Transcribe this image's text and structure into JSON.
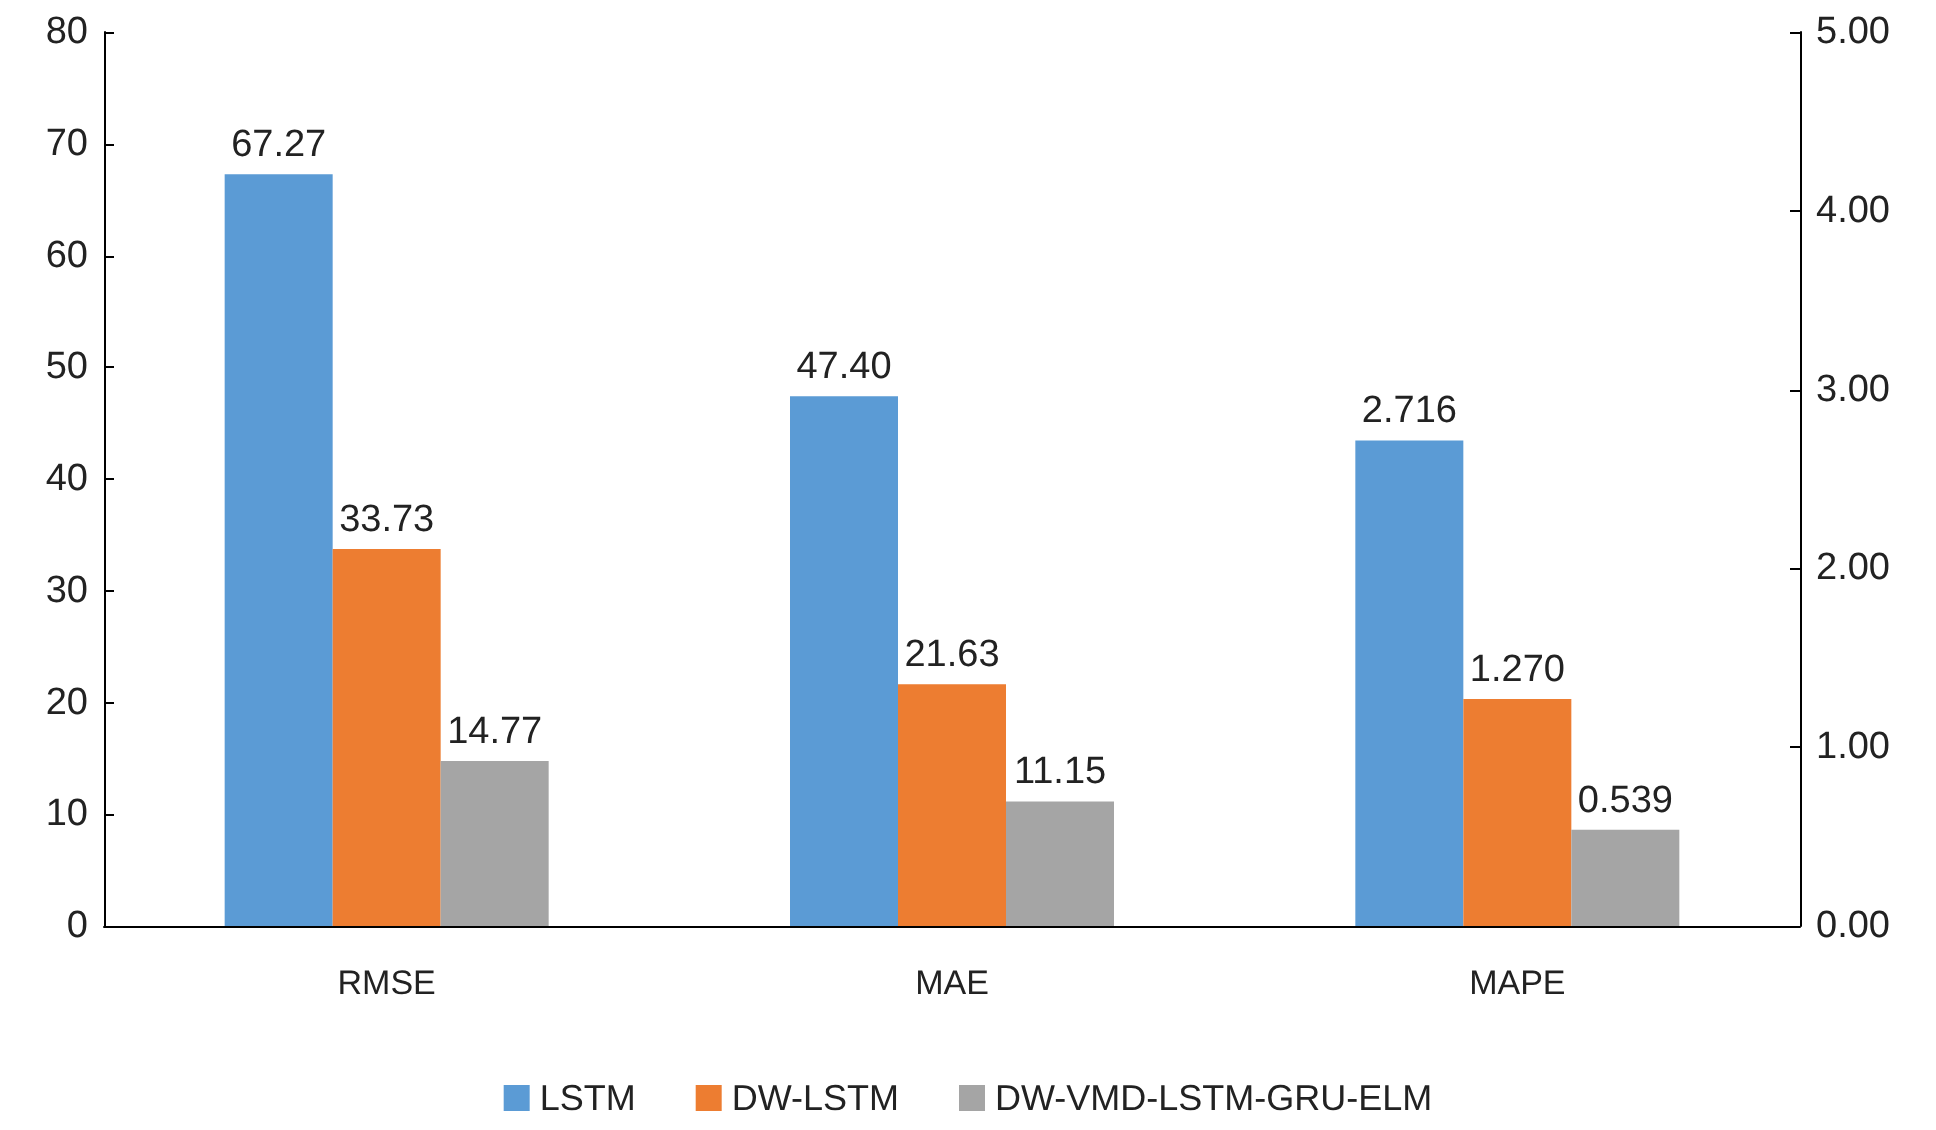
{
  "chart_data": {
    "type": "bar",
    "categories": [
      "RMSE",
      "MAE",
      "MAPE"
    ],
    "series": [
      {
        "name": "LSTM",
        "color": "#5b9bd5",
        "values": [
          67.27,
          47.4,
          null
        ],
        "value_labels": [
          "67.27",
          "47.40",
          null
        ]
      },
      {
        "name": "DW-LSTM",
        "color": "#ed7d31",
        "values": [
          33.73,
          21.63,
          null
        ],
        "value_labels": [
          "33.73",
          "21.63",
          null
        ]
      },
      {
        "name": "DW-VMD-LSTM-GRU-ELM",
        "color": "#a5a5a5",
        "values": [
          14.77,
          11.15,
          null
        ],
        "value_labels": [
          "14.77",
          "11.15",
          null
        ]
      },
      {
        "color": "#5b9bd5",
        "axis": "y2",
        "values": [
          null,
          null,
          2.716
        ],
        "value_labels": [
          null,
          null,
          "2.716"
        ]
      },
      {
        "color": "#ed7d31",
        "axis": "y2",
        "values": [
          null,
          null,
          1.27
        ],
        "value_labels": [
          null,
          null,
          "1.270"
        ]
      },
      {
        "color": "#a5a5a5",
        "axis": "y2",
        "values": [
          null,
          null,
          0.539
        ],
        "value_labels": [
          null,
          null,
          "0.539"
        ]
      }
    ],
    "ylim": [
      0,
      80
    ],
    "yticks": [
      0,
      10,
      20,
      30,
      40,
      50,
      60,
      70,
      80
    ],
    "y2lim": [
      0,
      5
    ],
    "y2ticks": [
      {
        "value": 0,
        "label": "0.00"
      },
      {
        "value": 1,
        "label": "1.00"
      },
      {
        "value": 2,
        "label": "2.00"
      },
      {
        "value": 3,
        "label": "3.00"
      },
      {
        "value": 4,
        "label": "4.00"
      },
      {
        "value": 5,
        "label": "5.00"
      }
    ],
    "grid": false,
    "legend": "bottom"
  }
}
